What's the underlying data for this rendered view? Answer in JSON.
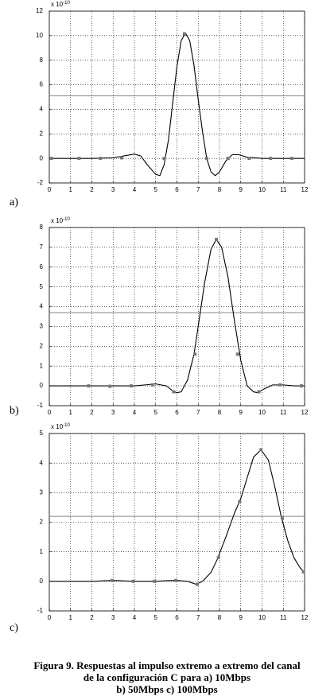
{
  "chart_data": [
    {
      "type": "line",
      "label": "a)",
      "y_multiplier": {
        "base": "x 10",
        "exponent": "-10"
      },
      "xlim": [
        0,
        12
      ],
      "xticks": [
        0,
        1,
        2,
        3,
        4,
        5,
        6,
        7,
        8,
        9,
        10,
        11,
        12
      ],
      "ylim": [
        -2,
        12
      ],
      "yticks": [
        -2,
        0,
        2,
        4,
        6,
        8,
        10,
        12
      ],
      "grid": true,
      "threshold": 5.1,
      "threshold_color": "#888888",
      "curve": {
        "color": "#000000",
        "x": [
          0,
          1,
          2,
          3,
          3.5,
          4,
          4.3,
          4.6,
          5,
          5.2,
          5.4,
          5.6,
          5.8,
          6,
          6.2,
          6.4,
          6.6,
          6.8,
          7,
          7.2,
          7.4,
          7.6,
          7.8,
          8,
          8.3,
          8.6,
          8.9,
          9.3,
          10,
          11,
          12
        ],
        "values": [
          0,
          0,
          0,
          0.05,
          0.2,
          0.35,
          0.2,
          -0.5,
          -1.3,
          -1.4,
          -0.5,
          1.5,
          4.5,
          7.5,
          9.6,
          10.2,
          9.6,
          7.6,
          4.8,
          2.2,
          0,
          -1.1,
          -1.4,
          -1.1,
          -0.2,
          0.3,
          0.3,
          0.1,
          0,
          0,
          0
        ]
      },
      "samples": {
        "color": "#777777",
        "x": [
          0.1,
          1.4,
          2.4,
          3.4,
          5.4,
          6.35,
          7.4,
          8.4,
          9.4,
          10.4,
          11.4
        ],
        "values": [
          0,
          0,
          0,
          0.05,
          0,
          10.15,
          0,
          0,
          0,
          0,
          0
        ]
      }
    },
    {
      "type": "line",
      "label": "b)",
      "y_multiplier": {
        "base": "x 10",
        "exponent": "-10"
      },
      "xlim": [
        0,
        12
      ],
      "xticks": [
        0,
        1,
        2,
        3,
        4,
        5,
        6,
        7,
        8,
        9,
        10,
        11,
        12
      ],
      "ylim": [
        -1,
        8
      ],
      "yticks": [
        -1,
        0,
        1,
        2,
        3,
        4,
        5,
        6,
        7,
        8
      ],
      "grid": true,
      "threshold": 3.7,
      "threshold_color": "#888888",
      "curve": {
        "color": "#000000",
        "x": [
          0,
          1,
          2,
          3,
          4,
          4.5,
          5,
          5.5,
          5.8,
          6,
          6.2,
          6.5,
          6.8,
          7,
          7.3,
          7.6,
          7.85,
          8.1,
          8.4,
          8.7,
          9,
          9.3,
          9.6,
          9.8,
          10.1,
          10.5,
          11,
          11.5,
          12
        ],
        "values": [
          0,
          0,
          0,
          0,
          0,
          0.05,
          0.1,
          0,
          -0.25,
          -0.35,
          -0.3,
          0.3,
          1.6,
          3,
          5.2,
          6.9,
          7.4,
          7,
          5.5,
          3.3,
          1.3,
          0,
          -0.3,
          -0.35,
          -0.15,
          0.05,
          0.05,
          0,
          0
        ]
      },
      "samples": {
        "color": "#777777",
        "x": [
          1.85,
          2.85,
          3.85,
          4.85,
          5.85,
          6.85,
          7.85,
          8.85,
          9.85,
          10.85,
          11.85
        ],
        "values": [
          0,
          -0.02,
          0,
          0.05,
          -0.3,
          1.6,
          7.4,
          1.6,
          -0.3,
          0.05,
          0
        ]
      }
    },
    {
      "type": "line",
      "label": "c)",
      "y_multiplier": {
        "base": "x 10",
        "exponent": "-10"
      },
      "xlim": [
        0,
        12
      ],
      "xticks": [
        0,
        1,
        2,
        3,
        4,
        5,
        6,
        7,
        8,
        9,
        10,
        11,
        12
      ],
      "ylim": [
        -1,
        5
      ],
      "yticks": [
        -1,
        0,
        1,
        2,
        3,
        4,
        5
      ],
      "grid": true,
      "threshold": 2.2,
      "threshold_color": "#888888",
      "curve": {
        "color": "#000000",
        "x": [
          0,
          2,
          3,
          4,
          5,
          5.5,
          6,
          6.5,
          6.9,
          7.2,
          7.6,
          7.9,
          8.3,
          8.7,
          9,
          9.3,
          9.6,
          9.95,
          10.3,
          10.6,
          10.9,
          11.2,
          11.5,
          11.8,
          12
        ],
        "values": [
          0,
          0,
          0.03,
          0,
          0,
          0.02,
          0.03,
          0,
          -0.1,
          0,
          0.3,
          0.75,
          1.5,
          2.3,
          2.8,
          3.5,
          4.2,
          4.45,
          4.1,
          3.2,
          2.2,
          1.4,
          0.8,
          0.45,
          0.3
        ]
      },
      "samples": {
        "color": "#777777",
        "x": [
          2.95,
          3.95,
          4.95,
          5.95,
          6.95,
          7.95,
          8.95,
          9.95,
          10.95,
          11.95
        ],
        "values": [
          0.03,
          0,
          0,
          0.03,
          -0.1,
          0.8,
          2.7,
          4.45,
          2.15,
          0.32
        ]
      }
    }
  ],
  "caption": [
    "Figura 9. Respuestas al impulso extremo a extremo del canal",
    "de la configuración C para a) 10Mbps",
    "b) 50Mbps c) 100Mbps"
  ]
}
